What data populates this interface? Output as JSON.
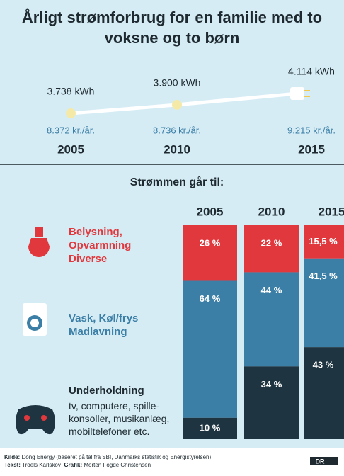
{
  "chart_data": [
    {
      "type": "line",
      "title": "Årligt strømforbrug for en familie med to voksne og to børn",
      "categories": [
        "2005",
        "2010",
        "2015"
      ],
      "values": [
        3738,
        3900,
        4114
      ],
      "value_labels": [
        "3.738 kWh",
        "3.900 kWh",
        "4.114 kWh"
      ],
      "price_labels": [
        "8.372 kr./år.",
        "8.736 kr./år.",
        "9.215 kr./år."
      ],
      "color": "#f5e9a8"
    },
    {
      "type": "stacked_bar",
      "title": "Strømmen går til:",
      "categories": [
        "2005",
        "2010",
        "2015"
      ],
      "series": [
        {
          "name": "Belysning, Opvarmning Diverse",
          "color": "#e0383d",
          "values": [
            26,
            22,
            15.5
          ],
          "value_labels": [
            "26 %",
            "22 %",
            "15,5 %"
          ]
        },
        {
          "name": "Vask, Køl/frys Madlavning",
          "color": "#3b7ea6",
          "values": [
            64,
            44,
            41.5
          ],
          "value_labels": [
            "64 %",
            "44 %",
            "41,5 %"
          ]
        },
        {
          "name": "Underholdning",
          "description": "tv, computere, spille-konsoller, musikanlæg, mobiltelefoner etc.",
          "color": "#1e3541",
          "values": [
            10,
            34,
            43
          ],
          "value_labels": [
            "10 %",
            "34 %",
            "43 %"
          ]
        }
      ]
    }
  ],
  "footer": {
    "source_label": "Kilde:",
    "source": "Dong Energy (baseret på tal fra SBI, Danmarks statistik og Energistyrelsen)",
    "text_label": "Tekst:",
    "text": "Troels Karlskov",
    "graphic_label": "Grafik:",
    "graphic": "Morten Fogde Christensen",
    "logo": "DR"
  }
}
